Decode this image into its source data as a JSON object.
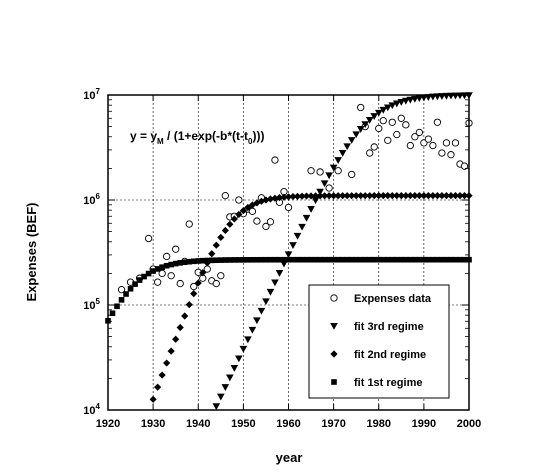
{
  "chart_data": {
    "type": "scatter",
    "xlabel": "year",
    "ylabel": "Expenses (BEF)",
    "xlim": [
      1920,
      2000
    ],
    "ylim": [
      10000,
      10000000
    ],
    "y_scale": "log",
    "x_ticks": [
      "1920",
      "1930",
      "1940",
      "1950",
      "1960",
      "1970",
      "1980",
      "1990",
      "2000"
    ],
    "y_ticks": [
      {
        "value": 10000,
        "base": "10",
        "exp": "4"
      },
      {
        "value": 100000,
        "base": "10",
        "exp": "5"
      },
      {
        "value": 1000000,
        "base": "10",
        "exp": "6"
      },
      {
        "value": 10000000,
        "base": "10",
        "exp": "7"
      }
    ],
    "grid": "dashed",
    "legend_position": "bottom-right",
    "annotation": {
      "prefix": "y = y",
      "sub1": "M",
      "middle": " / (1+exp(-b*(t-t",
      "sub2": "0",
      "suffix": ")))"
    },
    "series": [
      {
        "name": "Expenses data",
        "marker": "open-circle",
        "x": [
          1923,
          1925,
          1927,
          1929,
          1930,
          1931,
          1932,
          1933,
          1934,
          1935,
          1936,
          1937,
          1938,
          1939,
          1940,
          1941,
          1942,
          1943,
          1944,
          1945,
          1946,
          1947,
          1948,
          1949,
          1950,
          1951,
          1952,
          1953,
          1954,
          1955,
          1956,
          1957,
          1958,
          1959,
          1960,
          1965,
          1967,
          1969,
          1971,
          1974,
          1976,
          1977,
          1978,
          1979,
          1980,
          1981,
          1982,
          1983,
          1984,
          1985,
          1986,
          1987,
          1988,
          1989,
          1990,
          1991,
          1992,
          1993,
          1994,
          1995,
          1996,
          1997,
          1998,
          1999,
          2000
        ],
        "y": [
          140000,
          165000,
          180000,
          430000,
          220000,
          165000,
          200000,
          290000,
          190000,
          340000,
          160000,
          260000,
          590000,
          150000,
          205000,
          180000,
          220000,
          170000,
          160000,
          190000,
          1100000,
          690000,
          700000,
          1000000,
          740000,
          820000,
          780000,
          630000,
          1050000,
          560000,
          620000,
          2400000,
          950000,
          1200000,
          850000,
          1900000,
          1850000,
          1300000,
          1900000,
          1750000,
          7600000,
          5000000,
          2800000,
          3200000,
          4800000,
          5700000,
          3700000,
          5500000,
          4200000,
          6000000,
          5200000,
          3300000,
          4000000,
          4400000,
          3500000,
          3800000,
          3300000,
          5500000,
          2800000,
          3500000,
          2700000,
          3500000,
          2200000,
          2100000,
          5400000
        ]
      },
      {
        "name": "fit 3rd regime",
        "marker": "down-triangle",
        "model": {
          "yM": 10000000,
          "b": 0.21,
          "t0": 1976.5
        },
        "x_start": 1943,
        "x_end": 2000,
        "step": 1
      },
      {
        "name": "fit 2nd regime",
        "marker": "diamond",
        "model": {
          "yM": 1100000,
          "b": 0.27,
          "t0": 1946.5
        },
        "x_start": 1928,
        "x_end": 2000,
        "step": 1
      },
      {
        "name": "fit 1st regime",
        "marker": "filled-square",
        "model": {
          "yM": 270000,
          "b": 0.23,
          "t0": 1924.5
        },
        "x_start": 1920,
        "x_end": 2000,
        "step": 1
      }
    ]
  }
}
